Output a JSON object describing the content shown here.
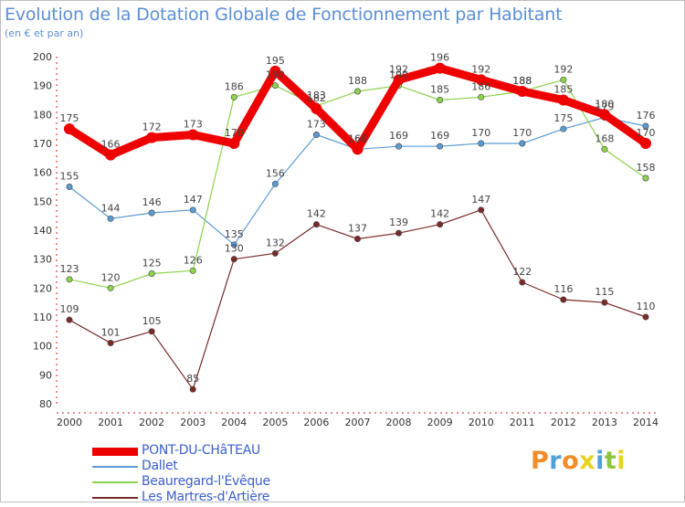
{
  "header": {
    "title": "Evolution de la Dotation Globale de Fonctionnement par Habitant",
    "subtitle": "(en € et par an)"
  },
  "brand": {
    "text": "Proxiti",
    "colors": [
      "#f28c28",
      "#4f9fd9",
      "#f28c28",
      "#e8d31f",
      "#4f9fd9",
      "#8cc63f",
      "#e8d31f"
    ]
  },
  "chart_data": {
    "type": "line",
    "title": "Evolution de la Dotation Globale de Fonctionnement par Habitant",
    "subtitle": "(en € et par an)",
    "xlabel": "",
    "ylabel": "",
    "x": [
      "2000",
      "2001",
      "2002",
      "2003",
      "2004",
      "2005",
      "2006",
      "2007",
      "2008",
      "2009",
      "2010",
      "2011",
      "2012",
      "2013",
      "2014"
    ],
    "ylim": [
      80,
      200
    ],
    "yticks": [
      80,
      90,
      100,
      110,
      120,
      130,
      140,
      150,
      160,
      170,
      180,
      190,
      200
    ],
    "grid": false,
    "legend_position": "bottom-left",
    "series": [
      {
        "name": "PONT-DU-CHâTEAU",
        "color": "#ee0000",
        "emphasis": true,
        "values": [
          175,
          166,
          172,
          173,
          170,
          195,
          182,
          168,
          192,
          196,
          192,
          188,
          185,
          180,
          170
        ]
      },
      {
        "name": "Dallet",
        "color": "#5b9bd5",
        "emphasis": false,
        "values": [
          155,
          144,
          146,
          147,
          135,
          156,
          173,
          168,
          169,
          169,
          170,
          170,
          175,
          179,
          176
        ]
      },
      {
        "name": "Beauregard-l'Évêque",
        "color": "#8cd24c",
        "emphasis": false,
        "values": [
          123,
          120,
          125,
          126,
          186,
          190,
          183,
          188,
          190,
          185,
          186,
          188,
          192,
          168,
          158
        ]
      },
      {
        "name": "Les Martres-d'Artière",
        "color": "#7b2a2a",
        "emphasis": false,
        "values": [
          109,
          101,
          105,
          85,
          130,
          132,
          142,
          137,
          139,
          142,
          147,
          122,
          116,
          115,
          110
        ]
      }
    ]
  }
}
